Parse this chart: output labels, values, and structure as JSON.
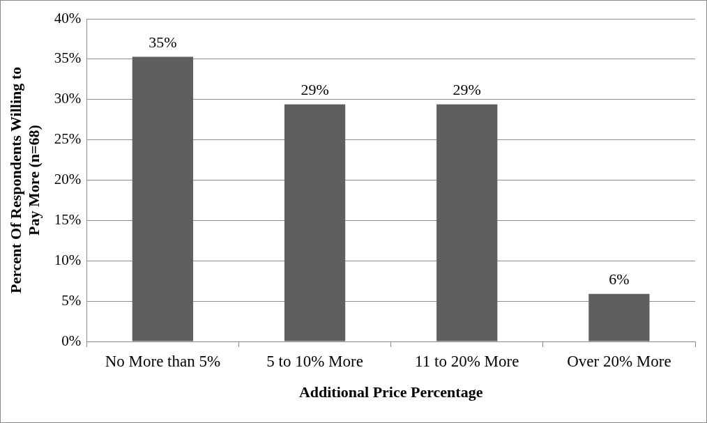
{
  "chart_data": {
    "type": "bar",
    "xlabel": "Additional Price Percentage",
    "ylabel": "Percent Of Respondents Willing to Pay More (n=68)",
    "categories": [
      "No More than 5%",
      "5 to 10% More",
      "11 to 20% More",
      "Over 20% More"
    ],
    "values": [
      35.3,
      29.4,
      29.4,
      5.9
    ],
    "value_labels": [
      "35%",
      "29%",
      "29%",
      "6%"
    ],
    "color": "#5f5f5f",
    "ylim": [
      0,
      40
    ],
    "yticks": [
      {
        "value": 0,
        "label": "0%"
      },
      {
        "value": 5,
        "label": "5%"
      },
      {
        "value": 10,
        "label": "10%"
      },
      {
        "value": 15,
        "label": "15%"
      },
      {
        "value": 20,
        "label": "20%"
      },
      {
        "value": 25,
        "label": "25%"
      },
      {
        "value": 30,
        "label": "30%"
      },
      {
        "value": 35,
        "label": "35%"
      },
      {
        "value": 40,
        "label": "40%"
      }
    ],
    "grid": "y",
    "legend": false
  }
}
